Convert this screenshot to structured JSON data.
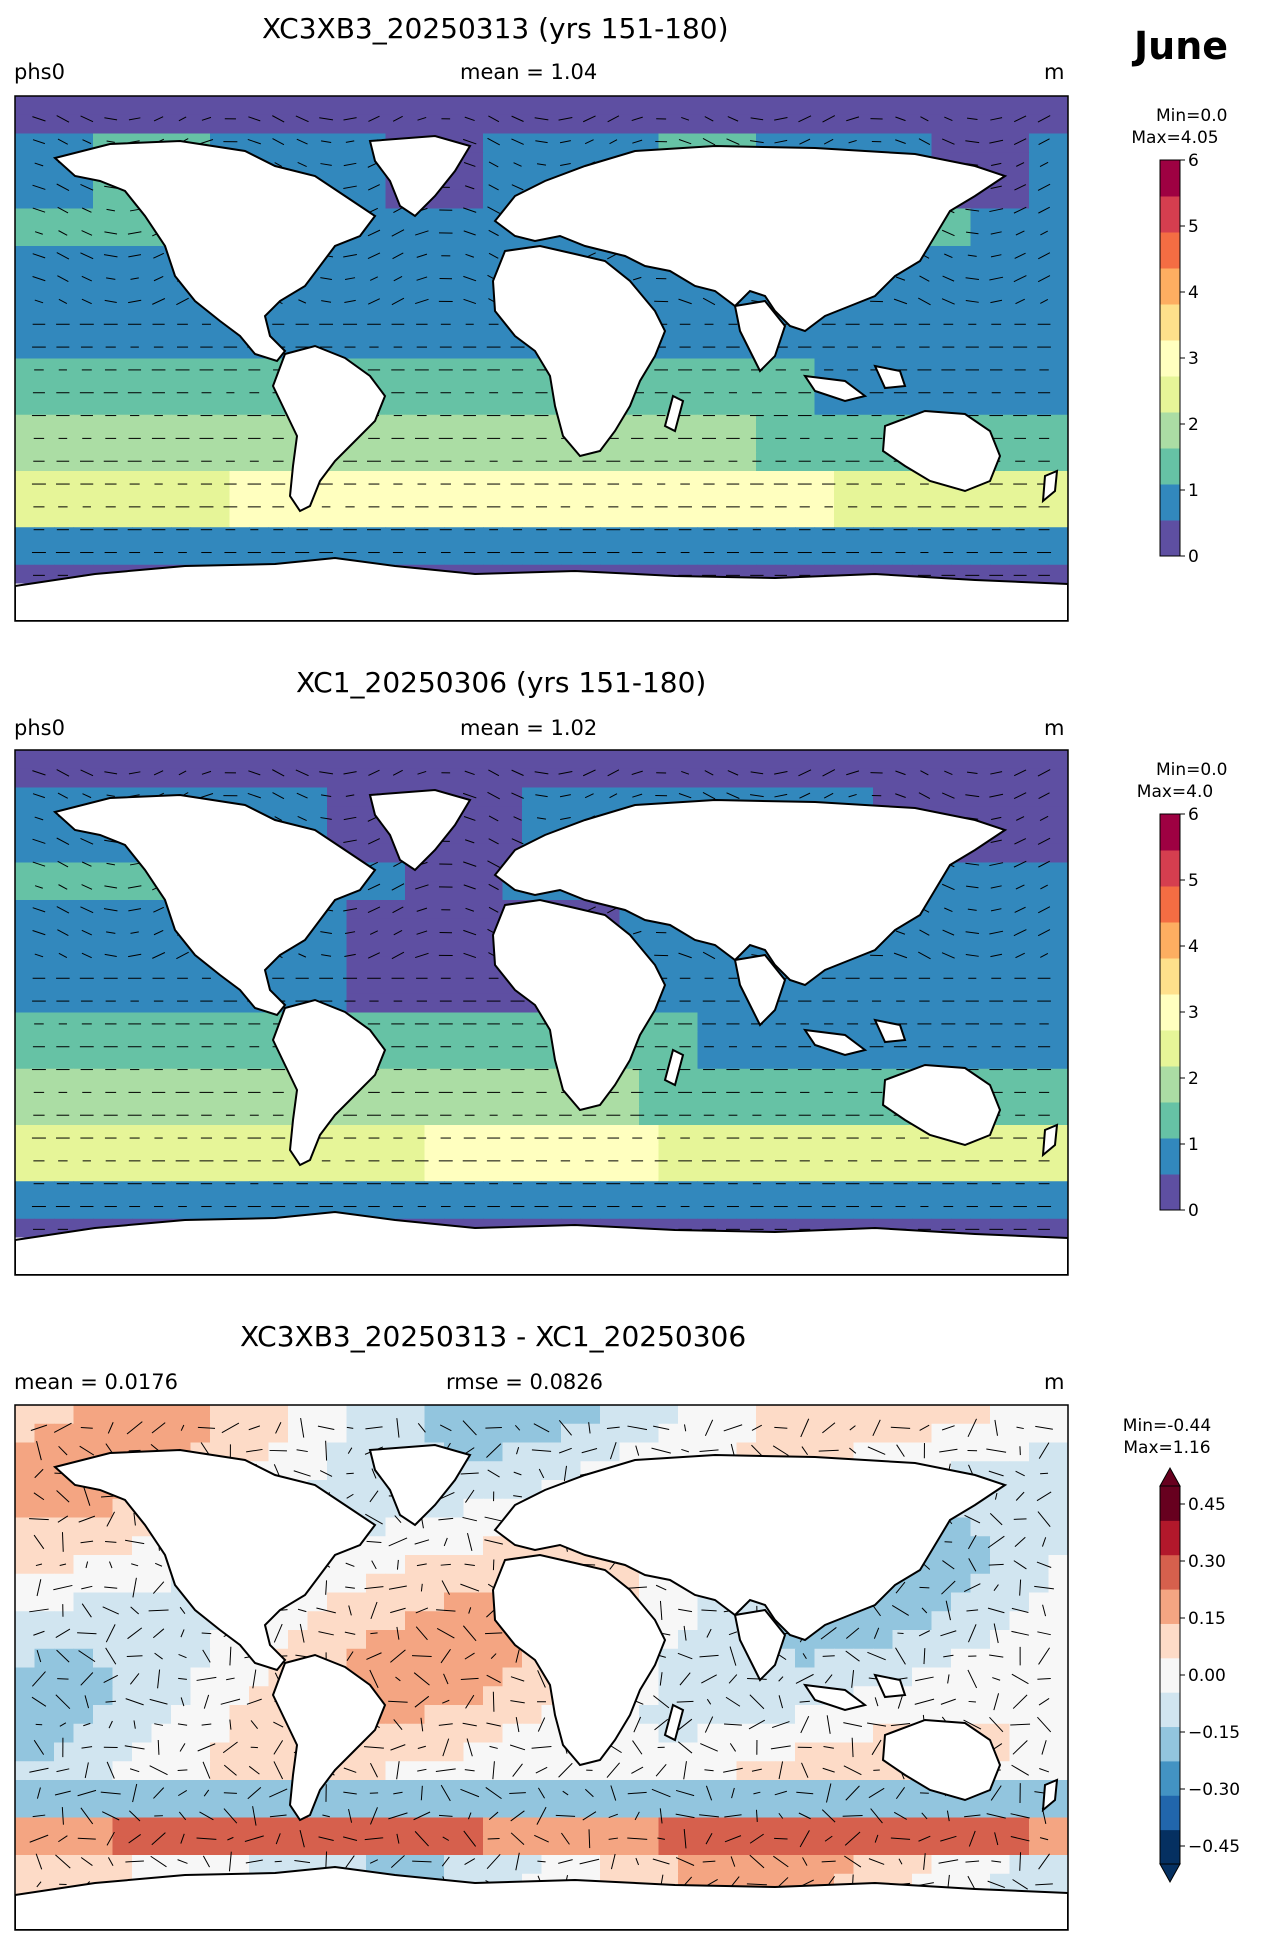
{
  "month": "June",
  "panels": [
    {
      "title": "XC3XB3_20250313 (yrs 151-180)",
      "left_label": "phs0",
      "center_label": "mean = 1.04",
      "right_label": "m",
      "min_label": "Min=0.0",
      "max_label": "Max=4.05",
      "colorbar_ticks": [
        "0",
        "1",
        "2",
        "3",
        "4",
        "5",
        "6"
      ]
    },
    {
      "title": "XC1_20250306 (yrs 151-180)",
      "left_label": "phs0",
      "center_label": "mean = 1.02",
      "right_label": "m",
      "min_label": "Min=0.0",
      "max_label": "Max=4.0",
      "colorbar_ticks": [
        "0",
        "1",
        "2",
        "3",
        "4",
        "5",
        "6"
      ]
    },
    {
      "title": "XC3XB3_20250313 - XC1_20250306",
      "left_label": "mean = 0.0176",
      "center_label": "rmse = 0.0826",
      "right_label": "m",
      "min_label": "Min=-0.44",
      "max_label": "Max=1.16",
      "colorbar_ticks": [
        "0.45",
        "0.30",
        "0.15",
        "0.00",
        "−0.15",
        "−0.30",
        "−0.45"
      ]
    }
  ],
  "colors": {
    "seq": [
      "#5e4fa2",
      "#3288bd",
      "#66c2a5",
      "#abdda4",
      "#e6f598",
      "#ffffbf",
      "#fee08b",
      "#fdae61",
      "#f46d43",
      "#d53e4f",
      "#9e0142"
    ],
    "div": [
      "#053061",
      "#2166ac",
      "#4393c3",
      "#92c5de",
      "#d1e5f0",
      "#f7f7f7",
      "#fddbc7",
      "#f4a582",
      "#d6604d",
      "#b2182b",
      "#67001f"
    ]
  }
}
